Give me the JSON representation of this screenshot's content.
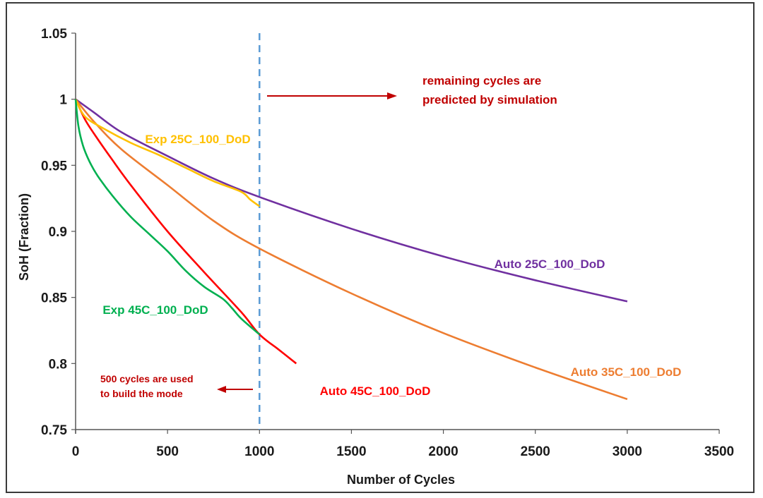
{
  "chart_data": {
    "type": "line",
    "title": "",
    "xlabel": "Number  of Cycles",
    "ylabel": "SoH (Fraction)",
    "xlim": [
      0,
      3500
    ],
    "ylim": [
      0.75,
      1.05
    ],
    "x_ticks": [
      0,
      500,
      1000,
      1500,
      2000,
      2500,
      3000,
      3500
    ],
    "y_ticks": [
      0.75,
      0.8,
      0.85,
      0.9,
      0.95,
      1.0,
      1.05
    ],
    "y_tick_labels": [
      "0.75",
      "0.8",
      "0.85",
      "0.9",
      "0.95",
      "1",
      "1.05"
    ],
    "grid": false,
    "series": [
      {
        "name": "Auto 25C_100_DoD",
        "color": "#7030a0",
        "x": [
          0,
          100,
          250,
          500,
          750,
          1000,
          1500,
          2000,
          2500,
          3000
        ],
        "y": [
          1.0,
          0.99,
          0.975,
          0.957,
          0.94,
          0.926,
          0.902,
          0.881,
          0.863,
          0.847
        ]
      },
      {
        "name": "Auto 35C_100_DoD",
        "color": "#ed7d31",
        "x": [
          0,
          100,
          250,
          500,
          750,
          1000,
          1500,
          2000,
          2500,
          3000
        ],
        "y": [
          1.0,
          0.983,
          0.962,
          0.935,
          0.908,
          0.887,
          0.853,
          0.823,
          0.797,
          0.773
        ]
      },
      {
        "name": "Auto 45C_100_DoD",
        "color": "#ff0000",
        "x": [
          0,
          50,
          100,
          200,
          300,
          500,
          700,
          900,
          1000,
          1100,
          1200
        ],
        "y": [
          1.0,
          0.985,
          0.974,
          0.954,
          0.935,
          0.9,
          0.869,
          0.839,
          0.822,
          0.811,
          0.8
        ]
      },
      {
        "name": "Exp 25C_100_DoD",
        "color": "#ffc000",
        "x": [
          0,
          50,
          150,
          300,
          450,
          600,
          750,
          900,
          950,
          1000
        ],
        "y": [
          1.0,
          0.987,
          0.978,
          0.967,
          0.958,
          0.948,
          0.938,
          0.93,
          0.924,
          0.919
        ]
      },
      {
        "name": "Exp 45C_100_DoD",
        "color": "#00b050",
        "x": [
          0,
          15,
          40,
          75,
          120,
          200,
          300,
          400,
          500,
          600,
          700,
          800,
          850,
          900,
          1000
        ],
        "y": [
          1.0,
          0.98,
          0.965,
          0.953,
          0.942,
          0.927,
          0.911,
          0.898,
          0.885,
          0.87,
          0.858,
          0.849,
          0.842,
          0.834,
          0.822
        ]
      }
    ],
    "vline": {
      "x": 1000,
      "color": "#5b9bd5",
      "style": "dashed"
    },
    "annotations": [
      {
        "text": [
          "remaining cycles are",
          "predicted by simulation"
        ],
        "color": "#c00000"
      },
      {
        "text": [
          "500 cycles are used",
          "to build the mode"
        ],
        "color": "#c00000"
      }
    ]
  }
}
